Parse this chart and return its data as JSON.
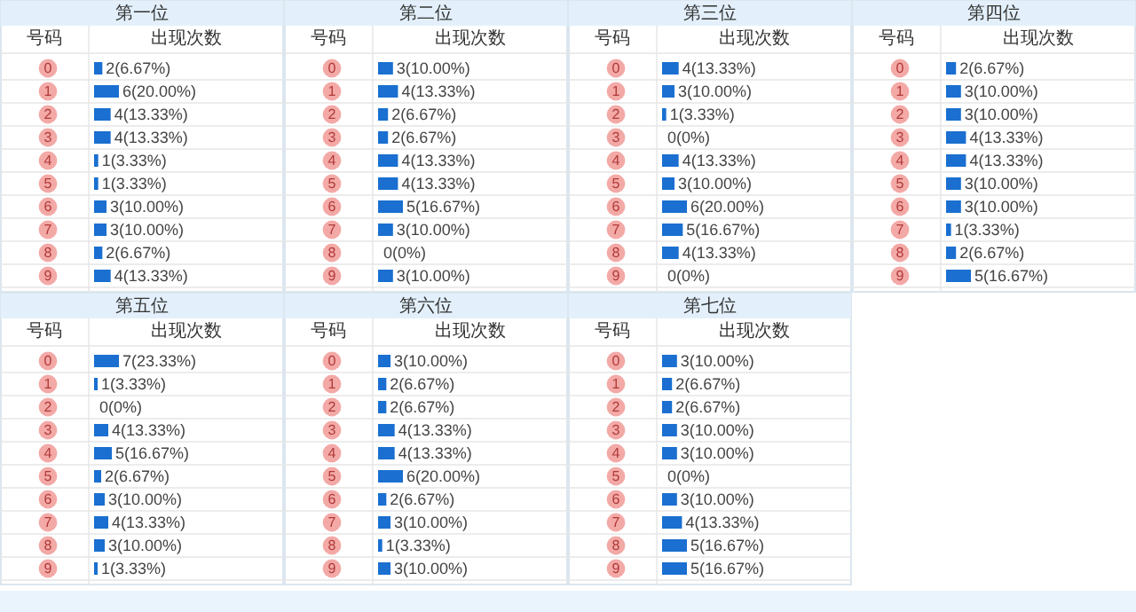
{
  "chart_data": [
    {
      "type": "bar",
      "orientation": "horizontal",
      "title": "第一位",
      "ylabel": "号码",
      "xlabel": "出现次数",
      "categories": [
        "0",
        "1",
        "2",
        "3",
        "4",
        "5",
        "6",
        "7",
        "8",
        "9"
      ],
      "color": "#1a6fd0",
      "values": [
        2,
        6,
        4,
        4,
        1,
        1,
        3,
        3,
        2,
        4
      ],
      "value_labels": [
        "2(6.67%)",
        "6(20.00%)",
        "4(13.33%)",
        "4(13.33%)",
        "1(3.33%)",
        "1(3.33%)",
        "3(10.00%)",
        "3(10.00%)",
        "2(6.67%)",
        "4(13.33%)"
      ]
    },
    {
      "type": "bar",
      "orientation": "horizontal",
      "title": "第二位",
      "ylabel": "号码",
      "xlabel": "出现次数",
      "categories": [
        "0",
        "1",
        "2",
        "3",
        "4",
        "5",
        "6",
        "7",
        "8",
        "9"
      ],
      "color": "#1a6fd0",
      "values": [
        3,
        4,
        2,
        2,
        4,
        4,
        5,
        3,
        0,
        3
      ],
      "value_labels": [
        "3(10.00%)",
        "4(13.33%)",
        "2(6.67%)",
        "2(6.67%)",
        "4(13.33%)",
        "4(13.33%)",
        "5(16.67%)",
        "3(10.00%)",
        "0(0%)",
        "3(10.00%)"
      ]
    },
    {
      "type": "bar",
      "orientation": "horizontal",
      "title": "第三位",
      "ylabel": "号码",
      "xlabel": "出现次数",
      "categories": [
        "0",
        "1",
        "2",
        "3",
        "4",
        "5",
        "6",
        "7",
        "8",
        "9"
      ],
      "color": "#1a6fd0",
      "values": [
        4,
        3,
        1,
        0,
        4,
        3,
        6,
        5,
        4,
        0
      ],
      "value_labels": [
        "4(13.33%)",
        "3(10.00%)",
        "1(3.33%)",
        "0(0%)",
        "4(13.33%)",
        "3(10.00%)",
        "6(20.00%)",
        "5(16.67%)",
        "4(13.33%)",
        "0(0%)"
      ]
    },
    {
      "type": "bar",
      "orientation": "horizontal",
      "title": "第四位",
      "ylabel": "号码",
      "xlabel": "出现次数",
      "categories": [
        "0",
        "1",
        "2",
        "3",
        "4",
        "5",
        "6",
        "7",
        "8",
        "9"
      ],
      "color": "#1a6fd0",
      "values": [
        2,
        3,
        3,
        4,
        4,
        3,
        3,
        1,
        2,
        5
      ],
      "value_labels": [
        "2(6.67%)",
        "3(10.00%)",
        "3(10.00%)",
        "4(13.33%)",
        "4(13.33%)",
        "3(10.00%)",
        "3(10.00%)",
        "1(3.33%)",
        "2(6.67%)",
        "5(16.67%)"
      ]
    },
    {
      "type": "bar",
      "orientation": "horizontal",
      "title": "第五位",
      "ylabel": "号码",
      "xlabel": "出现次数",
      "categories": [
        "0",
        "1",
        "2",
        "3",
        "4",
        "5",
        "6",
        "7",
        "8",
        "9"
      ],
      "color": "#1a6fd0",
      "values": [
        7,
        1,
        0,
        4,
        5,
        2,
        3,
        4,
        3,
        1
      ],
      "value_labels": [
        "7(23.33%)",
        "1(3.33%)",
        "0(0%)",
        "4(13.33%)",
        "5(16.67%)",
        "2(6.67%)",
        "3(10.00%)",
        "4(13.33%)",
        "3(10.00%)",
        "1(3.33%)"
      ]
    },
    {
      "type": "bar",
      "orientation": "horizontal",
      "title": "第六位",
      "ylabel": "号码",
      "xlabel": "出现次数",
      "categories": [
        "0",
        "1",
        "2",
        "3",
        "4",
        "5",
        "6",
        "7",
        "8",
        "9"
      ],
      "color": "#1a6fd0",
      "values": [
        3,
        2,
        2,
        4,
        4,
        6,
        2,
        3,
        1,
        3
      ],
      "value_labels": [
        "3(10.00%)",
        "2(6.67%)",
        "2(6.67%)",
        "4(13.33%)",
        "4(13.33%)",
        "6(20.00%)",
        "2(6.67%)",
        "3(10.00%)",
        "1(3.33%)",
        "3(10.00%)"
      ]
    },
    {
      "type": "bar",
      "orientation": "horizontal",
      "title": "第七位",
      "ylabel": "号码",
      "xlabel": "出现次数",
      "categories": [
        "0",
        "1",
        "2",
        "3",
        "4",
        "5",
        "6",
        "7",
        "8",
        "9"
      ],
      "color": "#1a6fd0",
      "values": [
        3,
        2,
        2,
        3,
        3,
        0,
        3,
        4,
        5,
        5
      ],
      "value_labels": [
        "3(10.00%)",
        "2(6.67%)",
        "2(6.67%)",
        "3(10.00%)",
        "3(10.00%)",
        "0(0%)",
        "3(10.00%)",
        "4(13.33%)",
        "5(16.67%)",
        "5(16.67%)"
      ]
    }
  ]
}
